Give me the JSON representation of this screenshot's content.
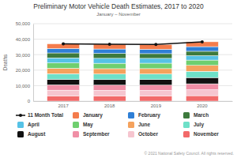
{
  "chart_data": {
    "type": "bar",
    "stacked": true,
    "title": "Preliminary Motor Vehicle Death Estimates, 2017 to 2020",
    "subtitle": "January – November",
    "ylabel": "Deaths",
    "annotations": [
      "© 2021 National Safety Council. All rights reserved."
    ],
    "categories": [
      "2017",
      "2018",
      "2019",
      "2020"
    ],
    "ylim": [
      0,
      50000
    ],
    "yticks": [
      0,
      {
        "value": 10000,
        "label": "10,000"
      },
      {
        "value": 20000,
        "label": "20,000"
      },
      {
        "value": 30000,
        "label": "30,000"
      },
      {
        "value": 40000,
        "label": "40,000"
      },
      {
        "value": 50000,
        "label": "50,000"
      }
    ],
    "grid": true,
    "legend": "bottom",
    "series": [
      {
        "name": "11 Month Total",
        "type": "line",
        "marker": "circle",
        "color": "#111111",
        "values": [
          37030,
          36780,
          36580,
          38320
        ]
      },
      {
        "name": "January",
        "color": "#f47c4c",
        "values": [
          3080,
          3130,
          3110,
          3140
        ]
      },
      {
        "name": "February",
        "color": "#2f7fd6",
        "values": [
          2830,
          2840,
          2800,
          3000
        ]
      },
      {
        "name": "March",
        "color": "#3d7a3d",
        "values": [
          3180,
          3170,
          3050,
          2850
        ]
      },
      {
        "name": "April",
        "color": "#56c2e6",
        "values": [
          3290,
          3210,
          3140,
          2830
        ]
      },
      {
        "name": "May",
        "color": "#6fcf6f",
        "values": [
          3480,
          3480,
          3490,
          3420
        ]
      },
      {
        "name": "June",
        "color": "#f5a25d",
        "values": [
          3500,
          3480,
          3500,
          3820
        ]
      },
      {
        "name": "July",
        "color": "#6ee0c8",
        "values": [
          3660,
          3580,
          3580,
          4040
        ]
      },
      {
        "name": "August",
        "color": "#111111",
        "values": [
          3510,
          3550,
          3580,
          4040
        ]
      },
      {
        "name": "September",
        "color": "#f08fa6",
        "values": [
          3440,
          3370,
          3390,
          3830
        ]
      },
      {
        "name": "October",
        "color": "#f6c5cf",
        "values": [
          3630,
          3560,
          3520,
          3820
        ]
      },
      {
        "name": "November",
        "color": "#f26a6a",
        "values": [
          3430,
          3410,
          3420,
          3530
        ]
      }
    ]
  }
}
